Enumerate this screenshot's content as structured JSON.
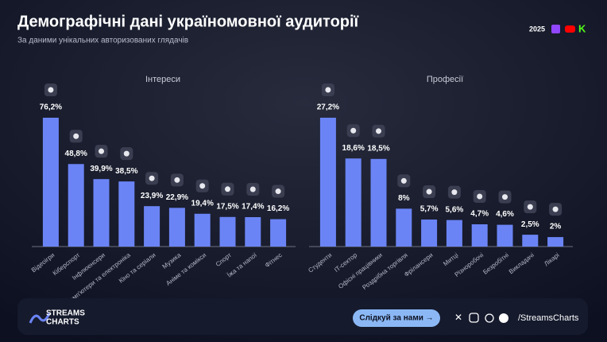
{
  "header": {
    "title": "Демографічні дані україномовної аудиторії",
    "subtitle": "За даними унікальних авторизованих глядачів",
    "year": "2025"
  },
  "chart_data": [
    {
      "type": "bar",
      "title": "Інтереси",
      "color": "#6b84f5",
      "categories": [
        "Відеоігри",
        "Кіберспорт",
        "Інфлюенсери",
        "Комп'ютери та електроніка",
        "Кіно та серіали",
        "Музика",
        "Аніме та комікси",
        "Спорт",
        "Їжа та напої",
        "Фітнес"
      ],
      "values": [
        76.2,
        48.8,
        39.9,
        38.5,
        23.9,
        22.9,
        19.4,
        17.5,
        17.4,
        16.2
      ],
      "value_labels": [
        "76,2%",
        "48,8%",
        "39,9%",
        "38,5%",
        "23,9%",
        "22,9%",
        "19,4%",
        "17,5%",
        "17,4%",
        "16,2%"
      ]
    },
    {
      "type": "bar",
      "title": "Професії",
      "color": "#6b84f5",
      "categories": [
        "Студенти",
        "IT-сектор",
        "Офісні працівники",
        "Роздрібна торгівля",
        "Фрілансери",
        "Митці",
        "Різноробочі",
        "Безробітні",
        "Викладачі",
        "Лікарі"
      ],
      "values": [
        27.2,
        18.6,
        18.5,
        8,
        5.7,
        5.6,
        4.7,
        4.6,
        2.5,
        2
      ],
      "value_labels": [
        "27,2%",
        "18,6%",
        "18,5%",
        "8%",
        "5,7%",
        "5,6%",
        "4,7%",
        "4,6%",
        "2,5%",
        "2%"
      ]
    }
  ],
  "footer": {
    "logo_top": "STREAMS",
    "logo_bottom": "CHARTS",
    "button": "Слідкуй за нами →",
    "handle": "/StreamsCharts"
  }
}
